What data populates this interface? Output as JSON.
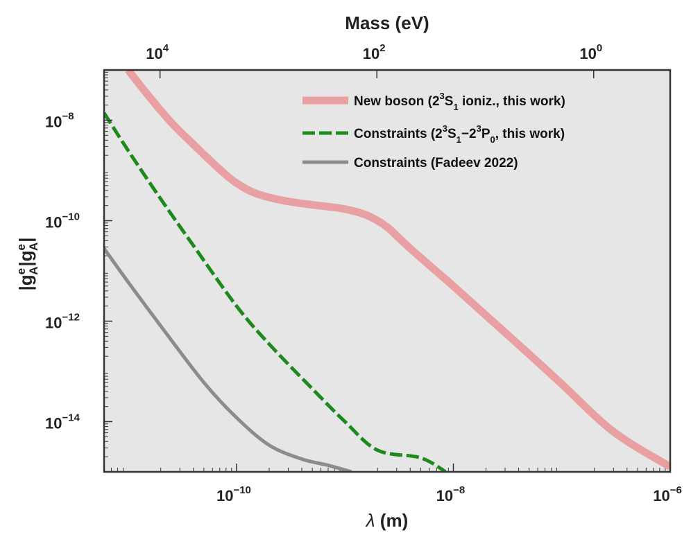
{
  "chart_data": {
    "type": "line",
    "x_scale": "log",
    "y_scale": "log",
    "xlabel_symbol": "λ",
    "xlabel_unit": " (m)",
    "ylabel_text": "|g",
    "ylabel_sup": "e",
    "ylabel_sub": "A",
    "ylabel_end": "|",
    "top_xlabel": "Mass (eV)",
    "xlim": [
      6e-12,
      1e-06
    ],
    "ylim": [
      1e-15,
      1e-07
    ],
    "x_ticks": [
      {
        "value": 1e-10,
        "base": "10",
        "exp": "−10"
      },
      {
        "value": 1e-08,
        "base": "10",
        "exp": "−8"
      },
      {
        "value": 1e-06,
        "base": "10",
        "exp": "−6"
      }
    ],
    "y_ticks": [
      {
        "value": 1e-08,
        "base": "10",
        "exp": "−8"
      },
      {
        "value": 1e-10,
        "base": "10",
        "exp": "−10"
      },
      {
        "value": 1e-12,
        "base": "10",
        "exp": "−12"
      },
      {
        "value": 1e-14,
        "base": "10",
        "exp": "−14"
      }
    ],
    "top_ticks": [
      {
        "lambda": 1.97e-11,
        "base": "10",
        "exp": "4"
      },
      {
        "lambda": 1.97e-09,
        "base": "10",
        "exp": "2"
      },
      {
        "lambda": 1.97e-07,
        "base": "10",
        "exp": "0"
      }
    ],
    "series": [
      {
        "name": "New boson",
        "legend_parts": [
          "New boson (2",
          "3",
          "S",
          "1",
          " ioniz., this work)"
        ],
        "color": "#e8a0a2",
        "style": "solid-thick",
        "x": [
          1e-11,
          1.5e-11,
          2.5e-11,
          4e-11,
          7e-11,
          1e-10,
          1.5e-10,
          2.5e-10,
          4e-10,
          7e-10,
          1e-09,
          1.5e-09,
          2e-09,
          2.5e-09,
          3e-09,
          4e-09,
          6e-09,
          1e-08,
          2e-08,
          5e-08,
          1e-07,
          3e-07,
          1e-06
        ],
        "y": [
          1e-07,
          3.3e-08,
          9e-09,
          3.3e-09,
          1.05e-09,
          5.6e-10,
          3.5e-10,
          2.6e-10,
          2.2e-10,
          1.9e-10,
          1.7e-10,
          1.35e-10,
          1e-10,
          7.2e-11,
          5e-11,
          2.8e-11,
          1.3e-11,
          5e-12,
          1.3e-12,
          2.2e-13,
          5.6e-14,
          6.3e-15,
          1.26e-15
        ]
      },
      {
        "name": "Constraints (2³S₁−2³P₀, this work)",
        "legend_parts": [
          "Constraints (2",
          "3",
          "S",
          "1",
          "−2",
          "3",
          "P",
          "0",
          ", this work)"
        ],
        "color": "#1e8a1e",
        "style": "dashed",
        "x": [
          6e-12,
          1e-11,
          2e-11,
          4e-11,
          1e-10,
          2e-10,
          5e-10,
          1e-09,
          2e-09,
          5e-09,
          8.5e-09
        ],
        "y": [
          1.4e-08,
          2.5e-09,
          2.7e-10,
          3.2e-11,
          2e-12,
          3.5e-13,
          4.5e-14,
          1e-14,
          2.7e-15,
          1.9e-15,
          1e-15
        ]
      },
      {
        "name": "Constraints (Fadeev 2022)",
        "legend_parts": [
          "Constraints (Fadeev 2022)"
        ],
        "color": "#8c8c8c",
        "style": "solid",
        "x": [
          6e-12,
          1e-11,
          2e-11,
          5e-11,
          1e-10,
          2e-10,
          4e-10,
          7e-10,
          1.15e-09
        ],
        "y": [
          2.8e-11,
          6e-12,
          8e-13,
          6e-14,
          1.2e-14,
          3.4e-15,
          1.8e-15,
          1.35e-15,
          1e-15
        ]
      }
    ]
  }
}
